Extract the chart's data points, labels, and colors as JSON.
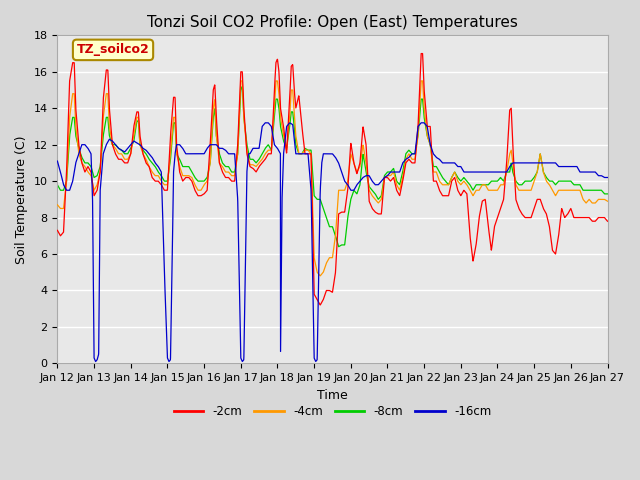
{
  "title": "Tonzi Soil CO2 Profile: Open (East) Temperatures",
  "xlabel": "Time",
  "ylabel": "Soil Temperature (C)",
  "ylim": [
    0,
    18
  ],
  "xlim": [
    0,
    360
  ],
  "annotation": "TZ_soilco2",
  "colors": {
    "-2cm": "#ff0000",
    "-4cm": "#ff9900",
    "-8cm": "#00cc00",
    "-16cm": "#0000cc"
  },
  "legend_labels": [
    "-2cm",
    "-4cm",
    "-8cm",
    "-16cm"
  ],
  "x_tick_labels": [
    "Jan 12",
    "Jan 13",
    "Jan 14",
    "Jan 15",
    "Jan 16",
    "Jan 17",
    "Jan 18",
    "Jan 19",
    "Jan 20",
    "Jan 21",
    "Jan 22",
    "Jan 23",
    "Jan 24",
    "Jan 25",
    "Jan 26",
    "Jan 27"
  ],
  "fig_facecolor": "#d8d8d8",
  "ax_facecolor": "#e8e8e8",
  "grid_color": "#ffffff",
  "title_fontsize": 11,
  "axis_fontsize": 9,
  "tick_fontsize": 8
}
